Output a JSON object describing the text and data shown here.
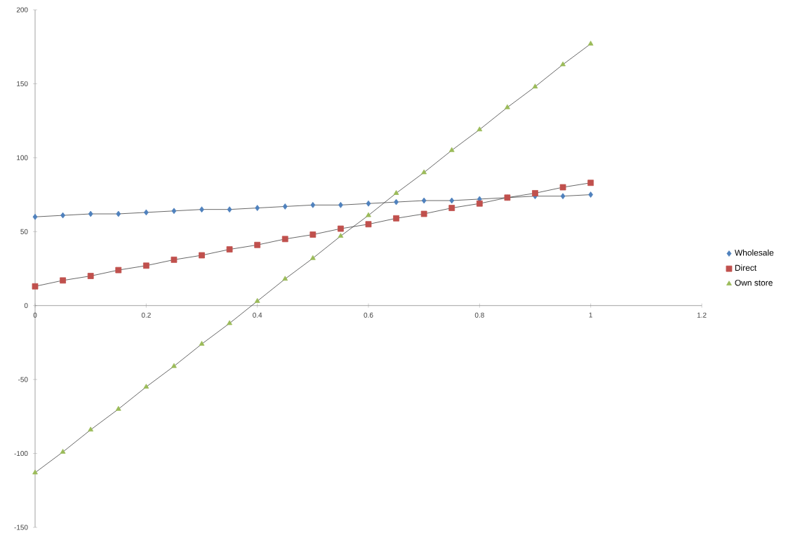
{
  "chart_data": {
    "type": "line",
    "x": [
      0,
      0.05,
      0.1,
      0.15,
      0.2,
      0.25,
      0.3,
      0.35,
      0.4,
      0.45,
      0.5,
      0.55,
      0.6,
      0.65,
      0.7,
      0.75,
      0.8,
      0.85,
      0.9,
      0.95,
      1
    ],
    "series": [
      {
        "name": "Wholesale",
        "color": "#4f81bd",
        "marker": "diamond",
        "values": [
          60,
          61,
          62,
          62,
          63,
          64,
          65,
          65,
          66,
          67,
          68,
          68,
          69,
          70,
          71,
          71,
          72,
          73,
          74,
          74,
          75
        ]
      },
      {
        "name": "Direct",
        "color": "#c0504d",
        "marker": "square",
        "values": [
          13,
          17,
          20,
          24,
          27,
          31,
          34,
          38,
          41,
          45,
          48,
          52,
          55,
          59,
          62,
          66,
          69,
          73,
          76,
          80,
          83
        ]
      },
      {
        "name": "Own store",
        "color": "#9bbb59",
        "marker": "triangle",
        "values": [
          -113,
          -99,
          -84,
          -70,
          -55,
          -41,
          -26,
          -12,
          3,
          18,
          32,
          47,
          61,
          76,
          90,
          105,
          119,
          134,
          148,
          163,
          177
        ]
      }
    ],
    "xlim": [
      0,
      1.2
    ],
    "xticks": [
      0,
      0.2,
      0.4,
      0.6,
      0.8,
      1,
      1.2
    ],
    "ylim": [
      -150,
      200
    ],
    "yticks": [
      -150,
      -100,
      -50,
      0,
      50,
      100,
      150,
      200
    ],
    "legend": "right",
    "line_style": "solid"
  }
}
